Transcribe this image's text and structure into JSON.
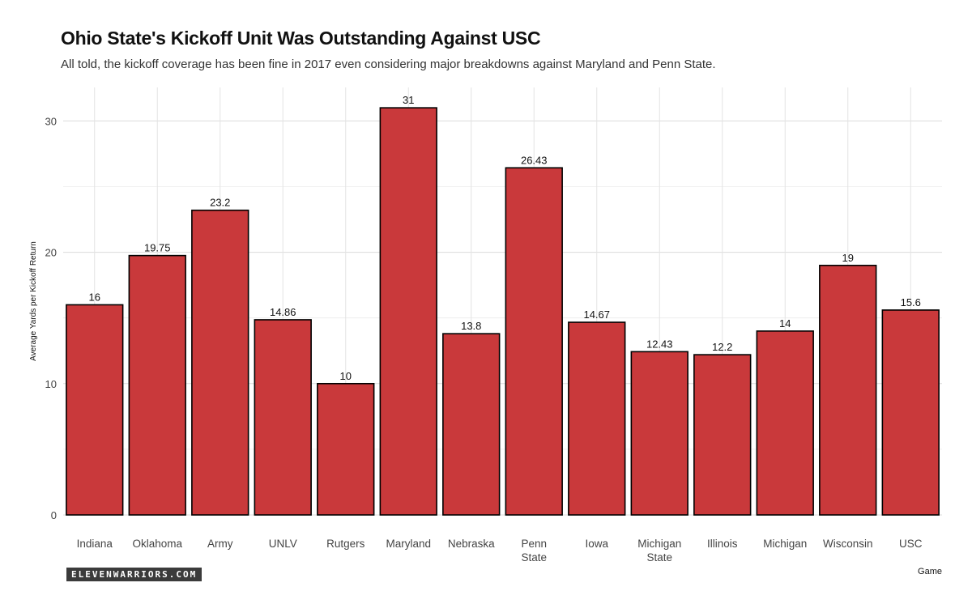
{
  "chart_data": {
    "type": "bar",
    "title": "Ohio State's Kickoff Unit Was Outstanding Against USC",
    "subtitle": "All told, the kickoff coverage has been fine in 2017 even considering major breakdowns against Maryland and Penn State.",
    "xlabel": "Game",
    "ylabel": "Average Yards per Kickoff Return",
    "categories": [
      "Indiana",
      "Oklahoma",
      "Army",
      "UNLV",
      "Rutgers",
      "Maryland",
      "Nebraska",
      "Penn State",
      "Iowa",
      "Michigan State",
      "Illinois",
      "Michigan",
      "Wisconsin",
      "USC"
    ],
    "category_labels": [
      [
        "Indiana"
      ],
      [
        "Oklahoma"
      ],
      [
        "Army"
      ],
      [
        "UNLV"
      ],
      [
        "Rutgers"
      ],
      [
        "Maryland"
      ],
      [
        "Nebraska"
      ],
      [
        "Penn",
        "State"
      ],
      [
        "Iowa"
      ],
      [
        "Michigan",
        "State"
      ],
      [
        "Illinois"
      ],
      [
        "Michigan"
      ],
      [
        "Wisconsin"
      ],
      [
        "USC"
      ]
    ],
    "values": [
      16,
      19.75,
      23.2,
      14.86,
      10,
      31,
      13.8,
      26.43,
      14.67,
      12.43,
      12.2,
      14,
      19,
      15.6
    ],
    "data_labels": [
      "16",
      "19.75",
      "23.2",
      "14.86",
      "10",
      "31",
      "13.8",
      "26.43",
      "14.67",
      "12.43",
      "12.2",
      "14",
      "19",
      "15.6"
    ],
    "ylim": [
      0,
      32.55
    ],
    "yticks": [
      0,
      10,
      20,
      30
    ],
    "grid": true,
    "legend": "none",
    "bar_color": "#c9393b",
    "bar_outline": "#000000"
  },
  "branding": "ELEVENWARRIORS.COM"
}
